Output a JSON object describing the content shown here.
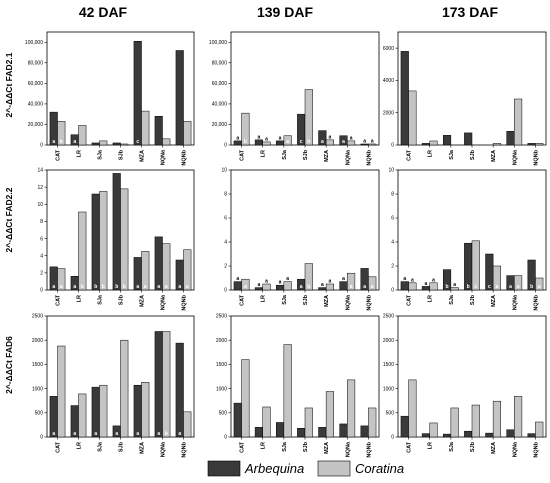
{
  "columns": [
    "42 DAF",
    "139 DAF",
    "173 DAF"
  ],
  "rows": [
    "2^-ΔΔCt FAD2.1",
    "2^-ΔΔCt FAD2.2",
    "2^-ΔΔCt FAD6"
  ],
  "legend": {
    "arbequina": {
      "label": "Arbequina",
      "color": "#3a3a3a"
    },
    "coratina": {
      "label": "Coratina",
      "color": "#c4c4c4"
    }
  },
  "chart_data": [
    {
      "type": "bar",
      "row": "2^-ΔΔCt FAD2.1",
      "column": "42 DAF",
      "categories": [
        "CAT",
        "LR",
        "SJa",
        "SJb",
        "MZA",
        "NQNa",
        "NQNb"
      ],
      "series": [
        {
          "name": "Arbequina",
          "values": [
            32000,
            10000,
            2000,
            2000,
            101000,
            28000,
            92000
          ],
          "labels": [
            "a",
            "a",
            "",
            "",
            "c",
            "",
            ""
          ]
        },
        {
          "name": "Coratina",
          "values": [
            23000,
            19000,
            4000,
            1000,
            33000,
            6000,
            23000
          ],
          "labels": [
            "b",
            "",
            "",
            "",
            "",
            "",
            ""
          ]
        }
      ],
      "ylim": [
        0,
        110000
      ],
      "yticks": [
        0,
        20000,
        40000,
        60000,
        80000,
        100000
      ],
      "yticklabels": [
        "0",
        "20,000",
        "40,000",
        "60,000",
        "80,000",
        "100,000"
      ]
    },
    {
      "type": "bar",
      "row": "2^-ΔΔCt FAD2.1",
      "column": "139 DAF",
      "categories": [
        "CAT",
        "LR",
        "SJa",
        "SJb",
        "MZA",
        "NQNa",
        "NQNb"
      ],
      "series": [
        {
          "name": "Arbequina",
          "values": [
            4000,
            5000,
            4000,
            30000,
            14000,
            9000,
            1000
          ],
          "labels": [
            "a",
            "a",
            "a",
            "c",
            "a",
            "a",
            "a"
          ]
        },
        {
          "name": "Coratina",
          "values": [
            31000,
            3000,
            9000,
            54000,
            5000,
            4000,
            1000
          ],
          "labels": [
            "b",
            "a",
            "a",
            "b",
            "a",
            "a",
            "a"
          ]
        }
      ],
      "ylim": [
        0,
        110000
      ],
      "yticks": [
        0,
        20000,
        40000,
        60000,
        80000,
        100000
      ],
      "yticklabels": [
        "0",
        "20,000",
        "40,000",
        "60,000",
        "80,000",
        "100,000"
      ]
    },
    {
      "type": "bar",
      "row": "2^-ΔΔCt FAD2.1",
      "column": "173 DAF",
      "categories": [
        "CAT",
        "LR",
        "SJa",
        "SJb",
        "MZA",
        "NQNa",
        "NQNb"
      ],
      "series": [
        {
          "name": "Arbequina",
          "values": [
            5800,
            100,
            600,
            750,
            0,
            850,
            100
          ],
          "labels": [
            "",
            "",
            "",
            "",
            "",
            "",
            ""
          ]
        },
        {
          "name": "Coratina",
          "values": [
            3350,
            250,
            0,
            0,
            100,
            2850,
            100
          ],
          "labels": [
            "",
            "",
            "",
            "",
            "",
            "",
            ""
          ]
        }
      ],
      "ylim": [
        0,
        7000
      ],
      "yticks": [
        0,
        2000,
        4000,
        6000
      ],
      "yticklabels": [
        "0",
        "2000",
        "4000",
        "6000"
      ]
    },
    {
      "type": "bar",
      "row": "2^-ΔΔCt FAD2.2",
      "column": "42 DAF",
      "categories": [
        "CAT",
        "LR",
        "SJa",
        "SJb",
        "MZA",
        "NQNa",
        "NQNb"
      ],
      "series": [
        {
          "name": "Arbequina",
          "values": [
            2.7,
            1.6,
            11.2,
            13.6,
            3.8,
            6.2,
            3.5
          ],
          "labels": [
            "a",
            "a",
            "b",
            "b",
            "a",
            "a",
            "a"
          ]
        },
        {
          "name": "Coratina",
          "values": [
            2.5,
            9.1,
            11.5,
            11.8,
            4.5,
            5.4,
            4.7
          ],
          "labels": [
            "a",
            "b",
            "b",
            "b",
            "a",
            "a",
            "a"
          ]
        }
      ],
      "ylim": [
        0,
        14
      ],
      "yticks": [
        0,
        2,
        4,
        6,
        8,
        10,
        12,
        14
      ],
      "yticklabels": [
        "0",
        "2",
        "4",
        "6",
        "8",
        "10",
        "12",
        "14"
      ]
    },
    {
      "type": "bar",
      "row": "2^-ΔΔCt FAD2.2",
      "column": "139 DAF",
      "categories": [
        "CAT",
        "LR",
        "SJa",
        "SJb",
        "MZA",
        "NQNa",
        "NQNb"
      ],
      "series": [
        {
          "name": "Arbequina",
          "values": [
            0.7,
            0.2,
            0.4,
            0.9,
            0.2,
            0.7,
            1.8
          ],
          "labels": [
            "a",
            "a",
            "a",
            "a",
            "a",
            "a",
            "a"
          ]
        },
        {
          "name": "Coratina",
          "values": [
            0.9,
            0.5,
            0.7,
            2.2,
            0.5,
            1.4,
            1.1
          ],
          "labels": [
            "a",
            "a",
            "a",
            "b",
            "a",
            "a",
            "a"
          ]
        }
      ],
      "ylim": [
        0,
        10
      ],
      "yticks": [
        0,
        2,
        4,
        6,
        8,
        10
      ],
      "yticklabels": [
        "0",
        "2",
        "4",
        "6",
        "8",
        "10"
      ]
    },
    {
      "type": "bar",
      "row": "2^-ΔΔCt FAD2.2",
      "column": "173 DAF",
      "categories": [
        "CAT",
        "LR",
        "SJa",
        "SJb",
        "MZA",
        "NQNa",
        "NQNb"
      ],
      "series": [
        {
          "name": "Arbequina",
          "values": [
            0.7,
            0.3,
            1.7,
            3.9,
            3.0,
            1.2,
            2.5
          ],
          "labels": [
            "a",
            "a",
            "b",
            "b",
            "c",
            "a",
            "b"
          ]
        },
        {
          "name": "Coratina",
          "values": [
            0.6,
            0.6,
            0.2,
            4.1,
            2.0,
            1.2,
            1.0
          ],
          "labels": [
            "a",
            "a",
            "a",
            "c",
            "a",
            "a",
            "a"
          ]
        }
      ],
      "ylim": [
        0,
        10
      ],
      "yticks": [
        0,
        2,
        4,
        6,
        8,
        10
      ],
      "yticklabels": [
        "0",
        "2",
        "4",
        "6",
        "8",
        "10"
      ]
    },
    {
      "type": "bar",
      "row": "2^-ΔΔCt FAD6",
      "column": "42 DAF",
      "categories": [
        "CAT",
        "LR",
        "SJa",
        "SJb",
        "MZA",
        "NQNa",
        "NQNb"
      ],
      "series": [
        {
          "name": "Arbequina",
          "values": [
            840,
            650,
            1030,
            230,
            1070,
            2180,
            1940
          ],
          "labels": [
            "a",
            "a",
            "a",
            "a",
            "a",
            "a",
            "a"
          ]
        },
        {
          "name": "Coratina",
          "values": [
            1880,
            890,
            1070,
            2000,
            1130,
            2180,
            520
          ],
          "labels": [
            "",
            "",
            "",
            "",
            "",
            "b",
            ""
          ]
        }
      ],
      "ylim": [
        0,
        2500
      ],
      "yticks": [
        0,
        500,
        1000,
        1500,
        2000,
        2500
      ],
      "yticklabels": [
        "0",
        "500",
        "1000",
        "1500",
        "2000",
        "2500"
      ]
    },
    {
      "type": "bar",
      "row": "2^-ΔΔCt FAD6",
      "column": "139 DAF",
      "categories": [
        "CAT",
        "LR",
        "SJa",
        "SJb",
        "MZA",
        "NQNa",
        "NQNb"
      ],
      "series": [
        {
          "name": "Arbequina",
          "values": [
            700,
            200,
            300,
            180,
            200,
            270,
            230
          ],
          "labels": [
            "",
            "",
            "",
            "",
            "",
            "",
            ""
          ]
        },
        {
          "name": "Coratina",
          "values": [
            1600,
            620,
            1910,
            600,
            940,
            1180,
            600
          ],
          "labels": [
            "",
            "",
            "",
            "",
            "",
            "",
            ""
          ]
        }
      ],
      "ylim": [
        0,
        2500
      ],
      "yticks": [
        0,
        500,
        1000,
        1500,
        2000,
        2500
      ],
      "yticklabels": [
        "0",
        "500",
        "1000",
        "1500",
        "2000",
        "2500"
      ]
    },
    {
      "type": "bar",
      "row": "2^-ΔΔCt FAD6",
      "column": "173 DAF",
      "categories": [
        "CAT",
        "LR",
        "SJa",
        "SJb",
        "MZA",
        "NQNa",
        "NQNb"
      ],
      "series": [
        {
          "name": "Arbequina",
          "values": [
            430,
            70,
            60,
            120,
            80,
            150,
            70
          ],
          "labels": [
            "",
            "",
            "",
            "",
            "",
            "",
            ""
          ]
        },
        {
          "name": "Coratina",
          "values": [
            1180,
            290,
            600,
            660,
            740,
            840,
            310
          ],
          "labels": [
            "",
            "",
            "",
            "",
            "",
            "",
            ""
          ]
        }
      ],
      "ylim": [
        0,
        2500
      ],
      "yticks": [
        0,
        500,
        1000,
        1500,
        2000,
        2500
      ],
      "yticklabels": [
        "0",
        "500",
        "1000",
        "1500",
        "2000",
        "2500"
      ]
    }
  ]
}
